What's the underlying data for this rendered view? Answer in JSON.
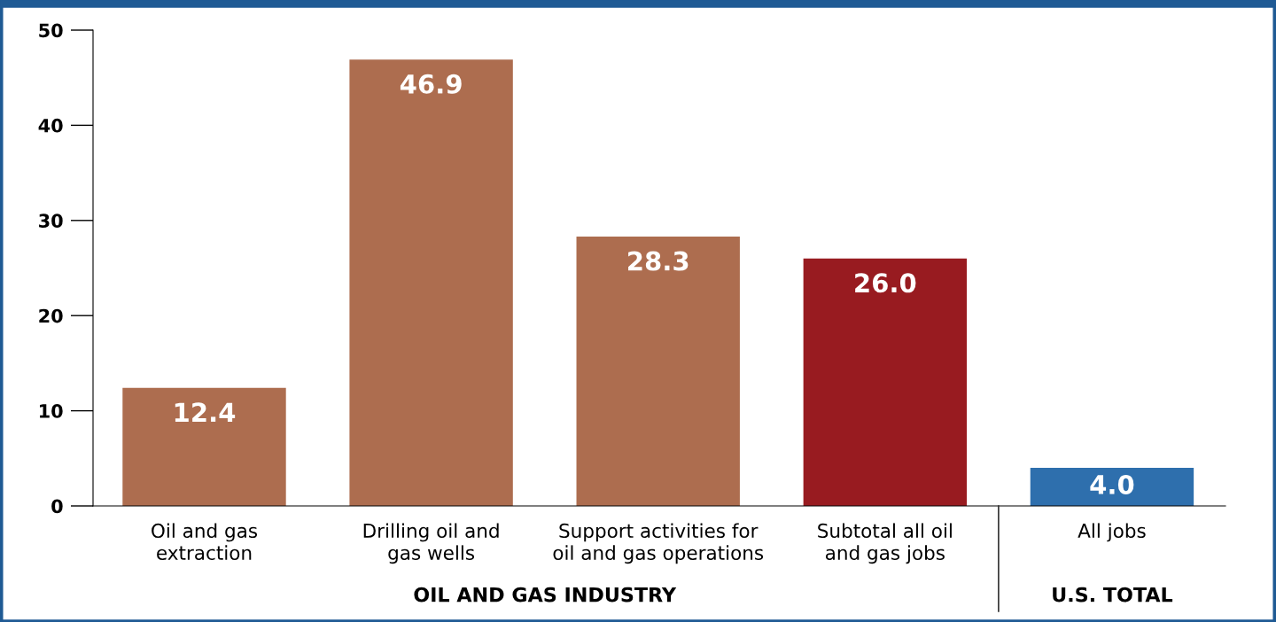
{
  "chart_data": {
    "type": "bar",
    "categories": [
      "Oil and gas\nextraction",
      "Drilling oil and\ngas wells",
      "Support activities for\noil and gas operations",
      "Subtotal all oil\nand gas jobs",
      "All jobs"
    ],
    "values": [
      12.4,
      46.9,
      28.3,
      26.0,
      4.0
    ],
    "colors": [
      "#ad6d4f",
      "#ad6d4f",
      "#ad6d4f",
      "#981b20",
      "#2e6fad"
    ],
    "value_labels": [
      "12.4",
      "46.9",
      "28.3",
      "26.0",
      "4.0"
    ],
    "ylim": [
      0,
      50
    ],
    "yticks": [
      0,
      10,
      20,
      30,
      40,
      50
    ],
    "grid": false,
    "annotations": [
      "OIL AND GAS INDUSTRY",
      "U.S. TOTAL"
    ]
  }
}
